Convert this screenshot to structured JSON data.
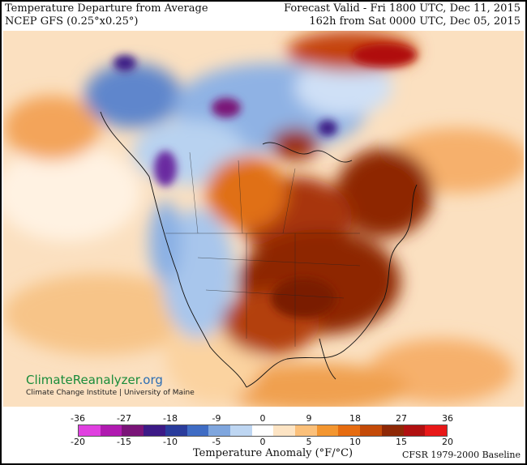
{
  "header": {
    "title": "Temperature Departure from Average",
    "model": "NCEP GFS (0.25°x0.25°)",
    "valid": "Forecast Valid - Fri 1800 UTC, Dec 11, 2015",
    "lead": "162h from Sat 0000 UTC, Dec 05, 2015"
  },
  "logo": {
    "main": "ClimateReanalyzer",
    "suffix": ".org",
    "sub": "Climate Change Institute | University of Maine"
  },
  "legend": {
    "f_ticks": [
      "-36",
      "-27",
      "-18",
      "-9",
      "0",
      "9",
      "18",
      "27",
      "36"
    ],
    "c_ticks": [
      "-20",
      "-15",
      "-10",
      "-5",
      "0",
      "5",
      "10",
      "15",
      "20"
    ],
    "colors": [
      "#e040e0",
      "#b01ab0",
      "#7a1478",
      "#3c1a86",
      "#2a3c9c",
      "#3f6cc4",
      "#7fa6de",
      "#bed6f2",
      "#ffffff",
      "#fde4c4",
      "#fbc07a",
      "#f39630",
      "#e66c10",
      "#c44a08",
      "#8e2806",
      "#b01010",
      "#e81818"
    ],
    "title": "Temperature Anomaly (°F/°C)",
    "baseline": "CFSR 1979-2000 Baseline"
  }
}
